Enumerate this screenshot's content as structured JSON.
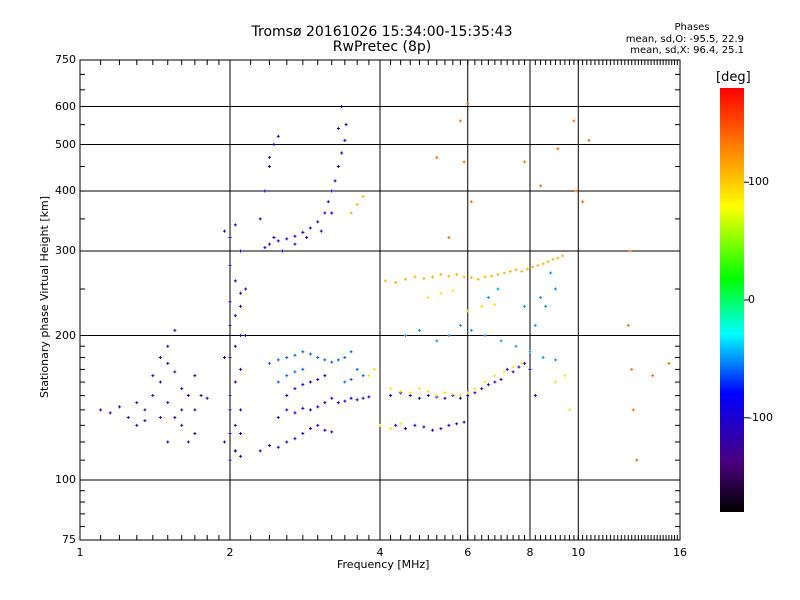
{
  "header": {
    "title": "Tromsø 20161026 15:34:00-15:35:43",
    "subtitle": "RwPretec (8p)",
    "phases_label": "Phases",
    "phases_o": "mean, sd,O: -95.5, 22.9",
    "phases_x": "mean, sd,X:  96.4, 25.1"
  },
  "colorbar": {
    "unit_label": "[deg]",
    "ticks": [
      "100",
      "0",
      "-100"
    ],
    "range": [
      -180,
      180
    ]
  },
  "chart_data": {
    "type": "scatter",
    "title": "Tromsø 20161026 15:34:00-15:35:43",
    "subtitle": "RwPretec (8p)",
    "xlabel": "Frequency [MHz]",
    "ylabel": "Stationary phase Virtual Height [km]",
    "xscale": "log",
    "yscale": "log",
    "xlim": [
      1,
      16
    ],
    "ylim": [
      75,
      750
    ],
    "xticks": [
      "1",
      "2",
      "4",
      "6",
      "8",
      "10",
      "16"
    ],
    "yticks": [
      "750",
      "600",
      "500",
      "400",
      "300",
      "200",
      "100",
      "75"
    ],
    "grid_x": [
      2,
      4,
      6,
      8,
      10
    ],
    "grid_y": [
      100,
      200,
      300,
      400,
      500,
      600
    ],
    "series": [
      {
        "points": [
          [
            1.1,
            140
          ],
          [
            1.15,
            138
          ],
          [
            1.2,
            142
          ],
          [
            1.25,
            135
          ],
          [
            1.3,
            145
          ],
          [
            1.35,
            140
          ],
          [
            1.4,
            150
          ],
          [
            1.45,
            160
          ],
          [
            1.5,
            175
          ],
          [
            1.55,
            168
          ],
          [
            1.6,
            155
          ],
          [
            1.65,
            150
          ],
          [
            1.7,
            165
          ],
          [
            1.75,
            150
          ],
          [
            1.8,
            148
          ],
          [
            1.5,
            190
          ],
          [
            1.55,
            205
          ],
          [
            1.45,
            180
          ],
          [
            1.4,
            165
          ],
          [
            1.6,
            130
          ],
          [
            1.65,
            120
          ],
          [
            1.7,
            125
          ],
          [
            1.35,
            133
          ],
          [
            1.3,
            130
          ],
          [
            1.55,
            135
          ],
          [
            1.6,
            140
          ],
          [
            1.5,
            145
          ],
          [
            1.45,
            135
          ],
          [
            1.5,
            120
          ],
          [
            1.7,
            140
          ]
        ],
        "phase": -120
      },
      {
        "points": [
          [
            2.0,
            110
          ],
          [
            2.05,
            115
          ],
          [
            2.1,
            112
          ],
          [
            2.0,
            125
          ],
          [
            2.05,
            130
          ],
          [
            2.1,
            140
          ],
          [
            2.0,
            150
          ],
          [
            2.05,
            160
          ],
          [
            2.1,
            170
          ],
          [
            2.0,
            180
          ],
          [
            2.05,
            190
          ],
          [
            2.1,
            200
          ],
          [
            2.0,
            210
          ],
          [
            2.05,
            220
          ],
          [
            2.0,
            235
          ],
          [
            2.1,
            245
          ],
          [
            2.05,
            260
          ],
          [
            2.0,
            280
          ],
          [
            2.1,
            300
          ],
          [
            2.0,
            320
          ],
          [
            2.05,
            340
          ],
          [
            1.95,
            330
          ],
          [
            2.1,
            230
          ],
          [
            1.95,
            180
          ],
          [
            2.0,
            140
          ],
          [
            2.05,
            115
          ],
          [
            1.95,
            120
          ],
          [
            2.1,
            125
          ],
          [
            2.15,
            200
          ],
          [
            2.15,
            250
          ]
        ],
        "phase": -110
      },
      {
        "points": [
          [
            2.35,
            305
          ],
          [
            2.4,
            310
          ],
          [
            2.5,
            315
          ],
          [
            2.6,
            318
          ],
          [
            2.7,
            322
          ],
          [
            2.8,
            328
          ],
          [
            2.9,
            335
          ],
          [
            3.0,
            345
          ],
          [
            3.1,
            360
          ],
          [
            3.15,
            380
          ],
          [
            3.2,
            400
          ],
          [
            3.25,
            420
          ],
          [
            3.3,
            450
          ],
          [
            3.35,
            480
          ],
          [
            3.4,
            510
          ],
          [
            3.42,
            550
          ],
          [
            3.35,
            600
          ],
          [
            3.3,
            540
          ],
          [
            2.45,
            320
          ],
          [
            2.55,
            300
          ],
          [
            2.7,
            310
          ],
          [
            2.85,
            320
          ],
          [
            3.05,
            330
          ],
          [
            3.2,
            360
          ],
          [
            2.3,
            350
          ],
          [
            2.35,
            400
          ],
          [
            2.4,
            450
          ],
          [
            2.45,
            500
          ],
          [
            2.5,
            520
          ],
          [
            2.4,
            470
          ]
        ],
        "phase": -95
      },
      {
        "points": [
          [
            2.3,
            115
          ],
          [
            2.4,
            118
          ],
          [
            2.5,
            117
          ],
          [
            2.6,
            120
          ],
          [
            2.7,
            122
          ],
          [
            2.8,
            125
          ],
          [
            2.9,
            128
          ],
          [
            3.0,
            130
          ],
          [
            3.1,
            127
          ],
          [
            3.2,
            126
          ],
          [
            2.5,
            135
          ],
          [
            2.6,
            140
          ],
          [
            2.7,
            138
          ],
          [
            2.8,
            141
          ],
          [
            2.9,
            140
          ],
          [
            3.0,
            142
          ],
          [
            3.1,
            145
          ],
          [
            3.2,
            148
          ],
          [
            3.3,
            145
          ],
          [
            3.4,
            146
          ],
          [
            3.5,
            148
          ],
          [
            3.6,
            147
          ],
          [
            3.7,
            148
          ],
          [
            3.8,
            149
          ],
          [
            2.6,
            150
          ],
          [
            2.7,
            155
          ],
          [
            2.8,
            158
          ],
          [
            2.9,
            160
          ],
          [
            3.0,
            162
          ],
          [
            3.1,
            165
          ]
        ],
        "phase": -90
      },
      {
        "points": [
          [
            2.4,
            175
          ],
          [
            2.5,
            178
          ],
          [
            2.6,
            180
          ],
          [
            2.7,
            182
          ],
          [
            2.8,
            185
          ],
          [
            2.9,
            183
          ],
          [
            3.0,
            180
          ],
          [
            3.1,
            178
          ],
          [
            3.2,
            176
          ],
          [
            3.3,
            178
          ],
          [
            3.4,
            180
          ],
          [
            3.5,
            185
          ],
          [
            3.6,
            170
          ],
          [
            3.7,
            165
          ],
          [
            2.5,
            160
          ],
          [
            2.6,
            165
          ],
          [
            2.7,
            168
          ],
          [
            2.8,
            170
          ],
          [
            3.4,
            160
          ],
          [
            3.5,
            162
          ]
        ],
        "phase": -60
      },
      {
        "points": [
          [
            4.2,
            150
          ],
          [
            4.4,
            152
          ],
          [
            4.6,
            150
          ],
          [
            4.8,
            148
          ],
          [
            5.0,
            150
          ],
          [
            5.2,
            149
          ],
          [
            5.4,
            148
          ],
          [
            5.6,
            150
          ],
          [
            5.8,
            148
          ],
          [
            6.0,
            150
          ],
          [
            6.2,
            152
          ],
          [
            6.4,
            155
          ],
          [
            6.6,
            158
          ],
          [
            6.8,
            160
          ],
          [
            7.0,
            162
          ],
          [
            4.3,
            130
          ],
          [
            4.5,
            128
          ],
          [
            4.7,
            130
          ],
          [
            4.9,
            129
          ],
          [
            5.1,
            127
          ],
          [
            5.3,
            128
          ],
          [
            5.5,
            130
          ],
          [
            5.7,
            131
          ],
          [
            5.9,
            132
          ],
          [
            7.2,
            170
          ],
          [
            7.4,
            168
          ],
          [
            7.6,
            172
          ],
          [
            7.8,
            175
          ],
          [
            8.0,
            170
          ],
          [
            8.2,
            150
          ]
        ],
        "phase": -100
      },
      {
        "points": [
          [
            4.1,
            260
          ],
          [
            4.3,
            258
          ],
          [
            4.5,
            262
          ],
          [
            4.7,
            265
          ],
          [
            4.9,
            263
          ],
          [
            5.1,
            265
          ],
          [
            5.3,
            268
          ],
          [
            5.5,
            266
          ],
          [
            5.7,
            268
          ],
          [
            5.9,
            265
          ],
          [
            6.1,
            264
          ],
          [
            6.3,
            262
          ],
          [
            6.5,
            265
          ],
          [
            6.7,
            266
          ],
          [
            6.9,
            268
          ],
          [
            7.1,
            270
          ],
          [
            7.3,
            272
          ],
          [
            7.5,
            274
          ],
          [
            7.7,
            272
          ],
          [
            7.9,
            275
          ],
          [
            8.1,
            278
          ],
          [
            8.3,
            280
          ],
          [
            8.5,
            282
          ],
          [
            8.7,
            285
          ],
          [
            8.9,
            288
          ],
          [
            9.1,
            290
          ],
          [
            9.3,
            293
          ],
          [
            3.5,
            360
          ],
          [
            3.6,
            375
          ],
          [
            3.7,
            390
          ]
        ],
        "phase": 110
      },
      {
        "points": [
          [
            4.2,
            155
          ],
          [
            4.4,
            153
          ],
          [
            4.6,
            152
          ],
          [
            4.8,
            155
          ],
          [
            5.0,
            153
          ],
          [
            5.2,
            150
          ],
          [
            5.4,
            152
          ],
          [
            5.6,
            151
          ],
          [
            5.8,
            150
          ],
          [
            6.0,
            152
          ],
          [
            6.2,
            155
          ],
          [
            6.5,
            160
          ],
          [
            6.8,
            165
          ],
          [
            7.1,
            168
          ],
          [
            7.4,
            172
          ],
          [
            7.7,
            175
          ],
          [
            4.0,
            130
          ],
          [
            4.2,
            128
          ],
          [
            4.4,
            131
          ],
          [
            6.0,
            225
          ],
          [
            6.4,
            230
          ],
          [
            6.8,
            232
          ],
          [
            5.0,
            240
          ],
          [
            5.3,
            245
          ],
          [
            5.6,
            248
          ],
          [
            3.8,
            165
          ],
          [
            3.9,
            170
          ],
          [
            9.0,
            160
          ],
          [
            9.4,
            165
          ],
          [
            9.6,
            140
          ]
        ],
        "phase": 90
      },
      {
        "points": [
          [
            4.5,
            200
          ],
          [
            4.8,
            205
          ],
          [
            5.2,
            195
          ],
          [
            5.5,
            200
          ],
          [
            5.8,
            210
          ],
          [
            6.1,
            205
          ],
          [
            6.5,
            200
          ],
          [
            7.0,
            195
          ],
          [
            7.5,
            190
          ],
          [
            8.0,
            185
          ],
          [
            8.5,
            180
          ],
          [
            9.0,
            178
          ],
          [
            8.2,
            210
          ],
          [
            8.6,
            230
          ],
          [
            9.0,
            250
          ],
          [
            8.8,
            270
          ],
          [
            8.4,
            240
          ],
          [
            7.8,
            230
          ],
          [
            6.6,
            240
          ],
          [
            6.9,
            250
          ]
        ],
        "phase": -50
      },
      {
        "points": [
          [
            5.2,
            470
          ],
          [
            5.5,
            320
          ],
          [
            5.8,
            560
          ],
          [
            5.9,
            460
          ],
          [
            6.0,
            610
          ],
          [
            6.1,
            380
          ],
          [
            7.8,
            460
          ],
          [
            8.4,
            410
          ],
          [
            9.1,
            490
          ],
          [
            9.8,
            560
          ],
          [
            9.9,
            400
          ],
          [
            10.2,
            380
          ],
          [
            10.5,
            510
          ],
          [
            12.6,
            210
          ],
          [
            12.8,
            170
          ],
          [
            12.9,
            140
          ],
          [
            13.1,
            110
          ],
          [
            14.1,
            165
          ],
          [
            15.2,
            175
          ],
          [
            12.7,
            300
          ]
        ],
        "phase": 140
      }
    ]
  }
}
